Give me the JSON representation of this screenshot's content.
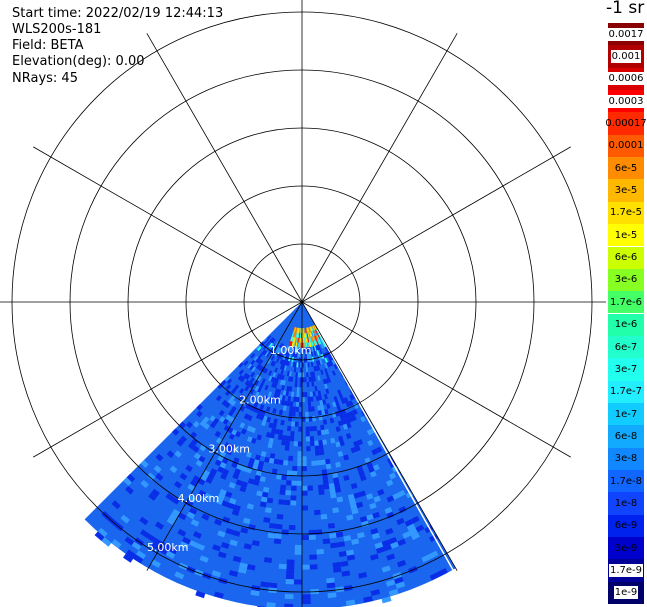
{
  "info": {
    "start_time": "Start time: 2022/02/19 12:44:13",
    "instrument": "WLS200s-181",
    "field": "Field: BETA",
    "elevation": "Elevation(deg): 0.00",
    "nrays": "NRays: 45"
  },
  "range_rings": [
    "1.00km",
    "2.00km",
    "3.00km",
    "4.00km",
    "5.00km"
  ],
  "colorbar": {
    "title": "-1 sr",
    "entries": [
      {
        "label": "0.0017",
        "color": "#8b0000",
        "text_color": "#000000"
      },
      {
        "label": "0.001",
        "color": "#b00000",
        "text_color": "#000000"
      },
      {
        "label": "0.0006",
        "color": "#d80000",
        "text_color": "#000000"
      },
      {
        "label": "0.0003",
        "color": "#ff0000",
        "text_color": "#000000"
      },
      {
        "label": "0.00017",
        "color": "#ff2a00",
        "text_color": "#000000"
      },
      {
        "label": "0.0001",
        "color": "#ff5a00",
        "text_color": "#000000"
      },
      {
        "label": "6e-5",
        "color": "#ff8c00",
        "text_color": "#000000"
      },
      {
        "label": "3e-5",
        "color": "#ffb800",
        "text_color": "#000000"
      },
      {
        "label": "1.7e-5",
        "color": "#ffe000",
        "text_color": "#000000"
      },
      {
        "label": "1e-5",
        "color": "#ffff00",
        "text_color": "#000000"
      },
      {
        "label": "6e-6",
        "color": "#ccff00",
        "text_color": "#000000"
      },
      {
        "label": "3e-6",
        "color": "#88ff22",
        "text_color": "#000000"
      },
      {
        "label": "1.7e-6",
        "color": "#44ff66",
        "text_color": "#000000"
      },
      {
        "label": "1e-6",
        "color": "#22ffaa",
        "text_color": "#000000"
      },
      {
        "label": "6e-7",
        "color": "#22ffcc",
        "text_color": "#000000"
      },
      {
        "label": "3e-7",
        "color": "#22ffee",
        "text_color": "#000000"
      },
      {
        "label": "1.7e-7",
        "color": "#22eeff",
        "text_color": "#000000"
      },
      {
        "label": "1e-7",
        "color": "#11ccff",
        "text_color": "#000000"
      },
      {
        "label": "6e-8",
        "color": "#11aaff",
        "text_color": "#000000"
      },
      {
        "label": "3e-8",
        "color": "#1188ff",
        "text_color": "#000000"
      },
      {
        "label": "1.7e-8",
        "color": "#1166ff",
        "text_color": "#000000"
      },
      {
        "label": "1e-8",
        "color": "#1144ff",
        "text_color": "#000000"
      },
      {
        "label": "6e-9",
        "color": "#0022ee",
        "text_color": "#000000"
      },
      {
        "label": "3e-9",
        "color": "#0000cc",
        "text_color": "#000000"
      },
      {
        "label": "1.7e-9",
        "color": "#000099",
        "text_color": "#ffffff"
      },
      {
        "label": "1e-9",
        "color": "#00006a",
        "text_color": "#ffffff"
      }
    ]
  },
  "scan": {
    "start_azimuth_deg": 150,
    "end_azimuth_deg": 225,
    "max_range_km": 5.3,
    "min_range_km": 0.0,
    "colors": {
      "background_blue": "#1a66ee",
      "dark_blue": "#0a2ee8",
      "light_blue": "#3399ff",
      "cyan": "#33ffe8",
      "yellow": "#ffee00",
      "orange": "#ff8800",
      "red": "#ff1100"
    }
  }
}
